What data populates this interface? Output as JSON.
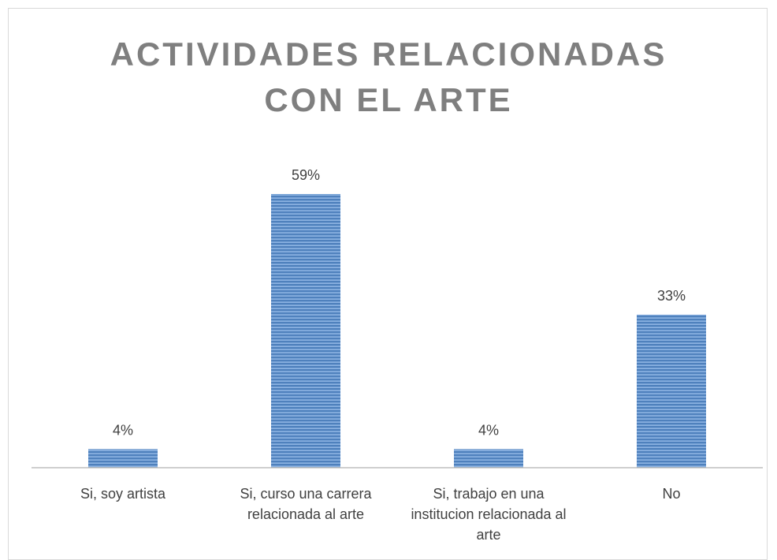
{
  "chart_data": {
    "type": "bar",
    "title": "ACTIVIDADES RELACIONADAS CON EL ARTE",
    "categories": [
      "Si, soy artista",
      "Si, curso una carrera relacionada al arte",
      "Si, trabajo en una institucion relacionada al arte",
      "No"
    ],
    "values": [
      4,
      59,
      4,
      33
    ],
    "value_labels": [
      "4%",
      "59%",
      "4%",
      "33%"
    ],
    "color": "#4f81bd"
  }
}
